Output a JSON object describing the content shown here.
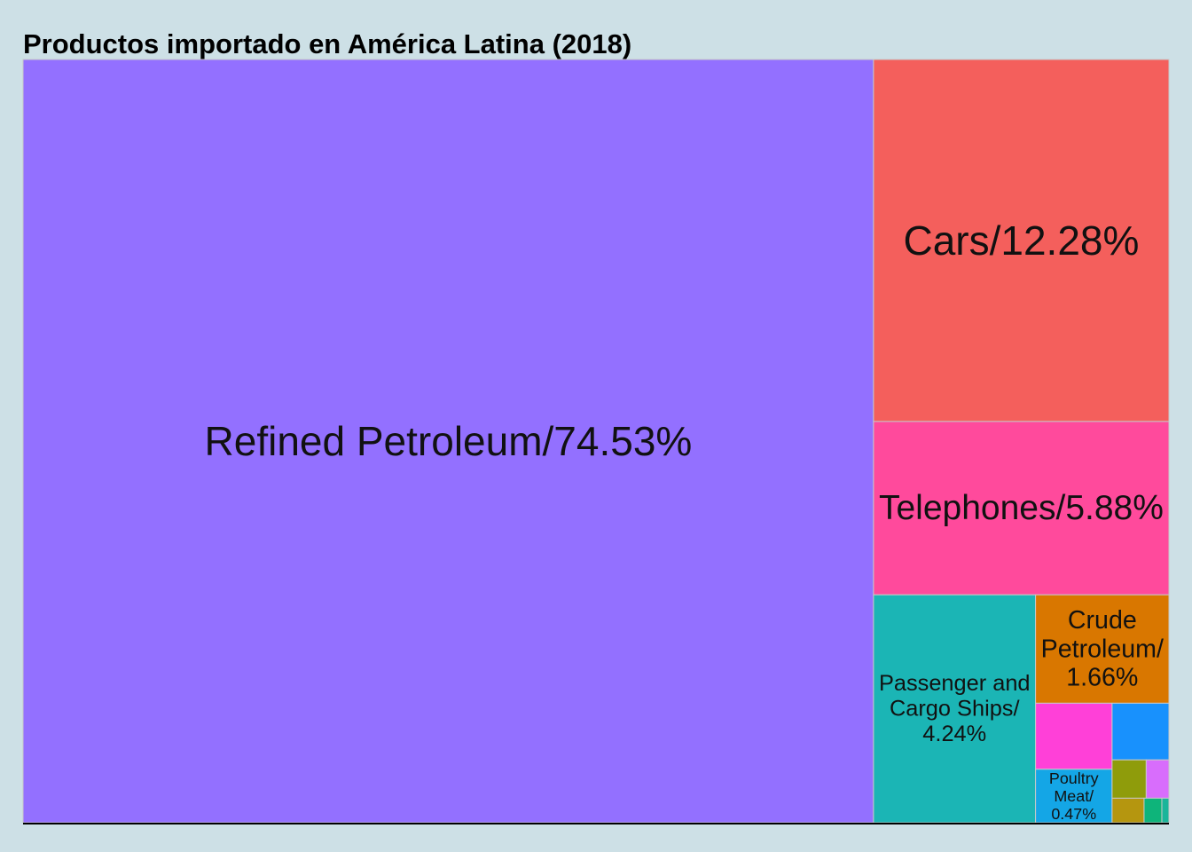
{
  "chart_data": {
    "type": "treemap",
    "title": "Productos importado en América Latina (2018)",
    "items": [
      {
        "name": "Refined Petroleum",
        "share": 74.53,
        "label": [
          "Refined Petroleum/74.53%"
        ],
        "color": "#9370ff"
      },
      {
        "name": "Cars",
        "share": 12.28,
        "label": [
          "Cars/12.28%"
        ],
        "color": "#f45f5c"
      },
      {
        "name": "Telephones",
        "share": 5.88,
        "label": [
          "Telephones/5.88%"
        ],
        "color": "#ff4a9c"
      },
      {
        "name": "Passenger and Cargo Ships",
        "share": 4.24,
        "label": [
          "Passenger and",
          "Cargo Ships/",
          "4.24%"
        ],
        "color": "#1bb5b5"
      },
      {
        "name": "Crude Petroleum",
        "share": 1.66,
        "label": [
          "Crude",
          "Petroleum/",
          "1.66%"
        ],
        "color": "#d97700"
      },
      {
        "name": "",
        "share": 0.58,
        "label": [],
        "color": "#ff40d8"
      },
      {
        "name": "Poultry Meat",
        "share": 0.47,
        "label": [
          "Poultry",
          "Meat/",
          "0.47%"
        ],
        "color": "#14a6e6"
      },
      {
        "name": "",
        "share": 0.37,
        "label": [],
        "color": "#1891fd"
      },
      {
        "name": "",
        "share": 0.15,
        "label": [],
        "color": "#8f9c0b"
      },
      {
        "name": "",
        "share": 0.1,
        "label": [],
        "color": "#d86dfc"
      },
      {
        "name": "",
        "share": 0.09,
        "label": [],
        "color": "#b5960f"
      },
      {
        "name": "",
        "share": 0.05,
        "label": [],
        "color": "#0eb47a"
      },
      {
        "name": "",
        "share": 0.02,
        "label": [],
        "color": "#19b59a"
      }
    ]
  }
}
